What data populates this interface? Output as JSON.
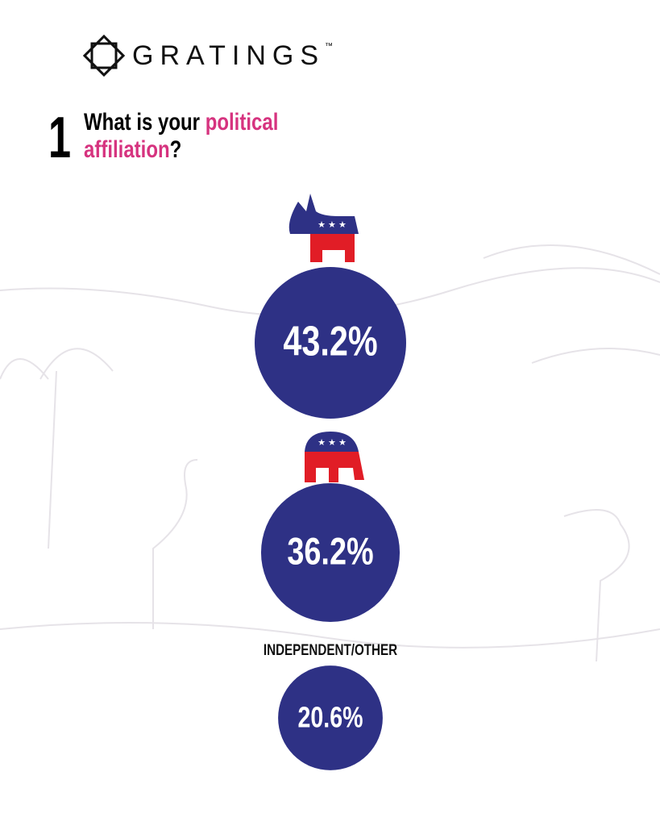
{
  "header": {
    "logo": "GRATINGS",
    "trademark": "™"
  },
  "chart_data": {
    "type": "bubble",
    "number": "1",
    "title_parts": [
      "What is your ",
      "political",
      "affiliation",
      "?"
    ],
    "categories": [
      null,
      null,
      "INDEPENDENT/OTHER"
    ],
    "values": [
      43.2,
      36.2,
      20.6
    ],
    "value_labels": [
      "43.2%",
      "36.2%",
      "20.6%"
    ],
    "color": "#2e3185",
    "accent": "#d6337f"
  }
}
